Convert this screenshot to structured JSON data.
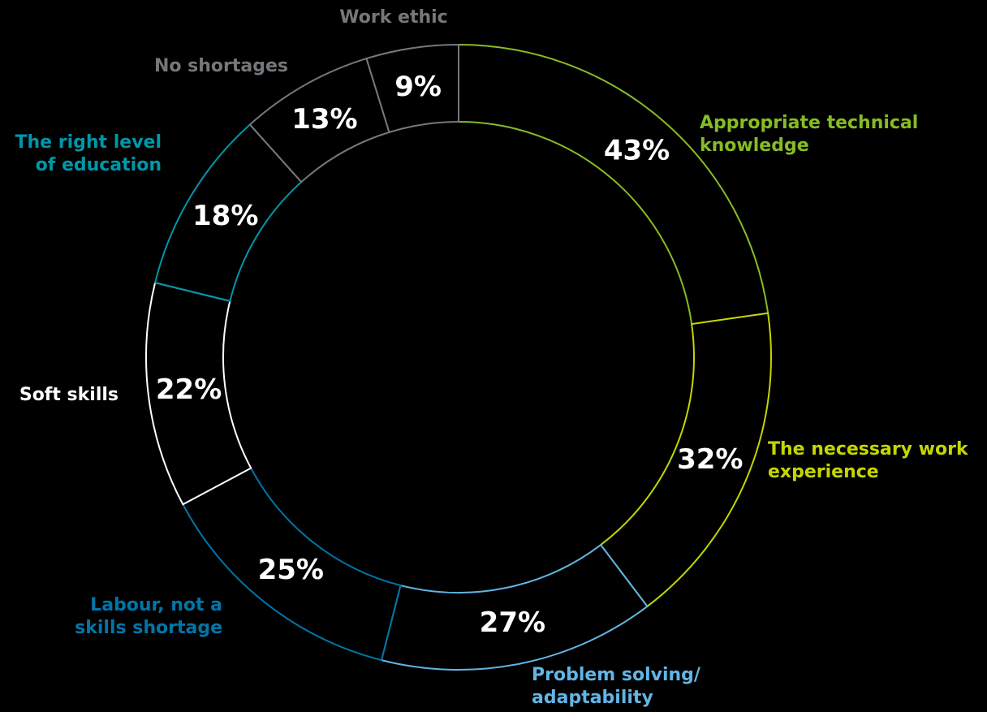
{
  "chart_data": {
    "type": "donut",
    "categories": [
      "Appropriate technical knowledge",
      "The necessary work experience",
      "Problem solving/ adaptability",
      "Labour, not a skills shortage",
      "Soft skills",
      "The right level of education",
      "No shortages",
      "Work ethic"
    ],
    "values": [
      43,
      32,
      27,
      25,
      22,
      18,
      13,
      9
    ],
    "value_labels": [
      "43%",
      "32%",
      "27%",
      "25%",
      "22%",
      "18%",
      "13%",
      "9%"
    ],
    "colors": [
      "#86bc25",
      "#c4d600",
      "#62b5e5",
      "#0076a8",
      "#ffffff",
      "#0097a9",
      "#75787b",
      "#75787b"
    ]
  }
}
